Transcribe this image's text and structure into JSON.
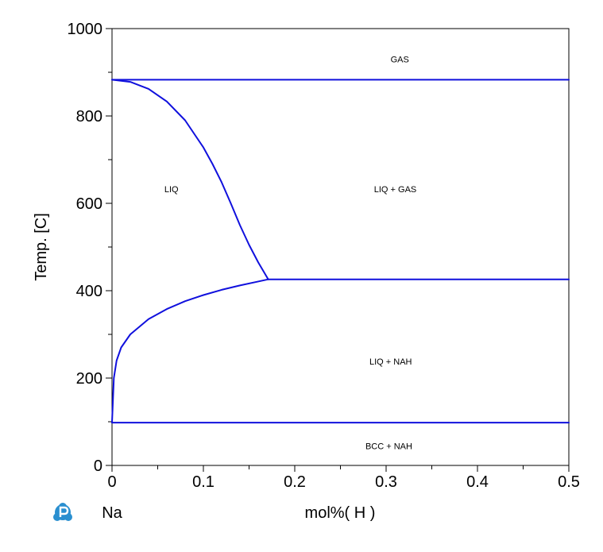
{
  "chart_data": {
    "type": "line",
    "title": "",
    "xlabel": "mol%( H )",
    "ylabel": "Temp. [C]",
    "xlim": [
      0,
      0.5
    ],
    "ylim": [
      0,
      1000
    ],
    "x_ticks": [
      "0",
      "0.1",
      "0.2",
      "0.3",
      "0.4",
      "0.5"
    ],
    "y_ticks": [
      "0",
      "200",
      "400",
      "600",
      "800",
      "1000"
    ],
    "grid": false,
    "line_color": "#1010dd",
    "left_element_label": "Na",
    "region_labels": [
      {
        "text": "GAS",
        "x": 0.315,
        "y": 930
      },
      {
        "text": "LIQ",
        "x": 0.065,
        "y": 633
      },
      {
        "text": "LIQ + GAS",
        "x": 0.31,
        "y": 633
      },
      {
        "text": "LIQ + NAH",
        "x": 0.305,
        "y": 238
      },
      {
        "text": "BCC + NAH",
        "x": 0.303,
        "y": 45
      }
    ],
    "series": [
      {
        "x": [
          0,
          0.5
        ],
        "y": [
          883,
          883
        ]
      },
      {
        "x": [
          0,
          0.02,
          0.04,
          0.06,
          0.08,
          0.1,
          0.11,
          0.12,
          0.13,
          0.14,
          0.15,
          0.16,
          0.171
        ],
        "y": [
          883,
          878,
          862,
          833,
          790,
          728,
          690,
          648,
          600,
          550,
          505,
          465,
          426
        ]
      },
      {
        "x": [
          0.171,
          0.5
        ],
        "y": [
          426,
          426
        ]
      },
      {
        "x": [
          0,
          0.002,
          0.005,
          0.01,
          0.02,
          0.04,
          0.06,
          0.08,
          0.1,
          0.12,
          0.14,
          0.16,
          0.171
        ],
        "y": [
          98,
          200,
          240,
          270,
          300,
          335,
          358,
          376,
          390,
          402,
          412,
          421,
          426
        ]
      },
      {
        "x": [
          0,
          0.5
        ],
        "y": [
          98,
          98
        ]
      }
    ]
  }
}
